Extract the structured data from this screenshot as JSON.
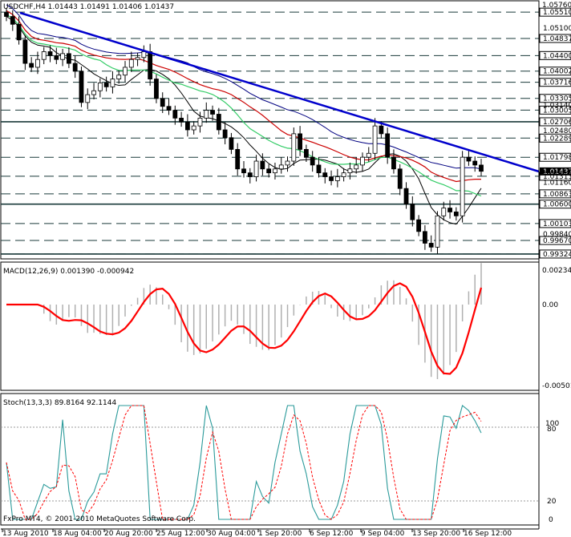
{
  "window": {
    "symbol_info": "USDCHF,H4  1.01443 1.01491 1.01406 1.01437",
    "copyright": "FxPro MT4, © 2001-2010 MetaQuotes Software Corp."
  },
  "colors": {
    "background": "#ffffff",
    "candles": "#000000",
    "trendline": "#0000cc",
    "ma_red": "#cc0000",
    "ma_green": "#33cc66",
    "ma_black": "#000000",
    "ma_navy": "#000080",
    "price_box": "#000000",
    "macd_hist": "#b0b0b0",
    "macd_signal": "#ff0000",
    "stoch_main": "#2a9a9a",
    "stoch_signal": "#ff0000"
  },
  "price_axis": {
    "top_label": "1.05760",
    "labels": [
      "1.05510",
      "1.05100",
      "1.04837",
      "1.04400",
      "1.04002",
      "1.03716",
      "1.03305",
      "1.03140",
      "1.03005",
      "1.02706",
      "1.02480",
      "1.02289",
      "1.01798",
      "1.01437",
      "1.01313",
      "1.01160",
      "1.00863",
      "1.00600",
      "1.00103",
      "0.99840",
      "0.99670",
      "0.99324"
    ],
    "boxed_labels": [
      "1.05510",
      "1.04837",
      "1.04400",
      "1.04002",
      "1.03716",
      "1.03305",
      "1.03005",
      "1.02706",
      "1.02289",
      "1.01798",
      "1.01313",
      "1.00863",
      "1.00600",
      "1.00103",
      "0.99670",
      "0.99324"
    ],
    "current_price": "1.01437",
    "ylim": [
      0.9922,
      1.0578
    ]
  },
  "macd": {
    "title": "MACD(12,26,9) 0.001390 -0.000942",
    "axis_labels": [
      "0.00234",
      "0.00",
      "-0.00501"
    ]
  },
  "stoch": {
    "title": "Stoch(13,3,3) 89.8164 92.1144",
    "axis_labels": [
      "100",
      "80",
      "20",
      "0"
    ]
  },
  "time_axis": {
    "labels": [
      "13 Aug 2010",
      "18 Aug 04:00",
      "20 Aug 20:00",
      "25 Aug 12:00",
      "30 Aug 04:00",
      "1 Sep 20:00",
      "6 Sep 12:00",
      "9 Sep 04:00",
      "13 Sep 20:00",
      "16 Sep 12:00"
    ]
  },
  "chart_data": {
    "type": "candlestick",
    "series": [
      {
        "name": "USDCHF,H4",
        "close": [
          1.054,
          1.052,
          1.048,
          1.042,
          1.041,
          1.043,
          1.045,
          1.044,
          1.043,
          1.0445,
          1.042,
          1.04,
          1.032,
          1.034,
          1.035,
          1.037,
          1.036,
          1.038,
          1.039,
          1.041,
          1.043,
          1.0435,
          1.045,
          1.038,
          1.033,
          1.031,
          1.03,
          1.028,
          1.027,
          1.025,
          1.026,
          1.028,
          1.03,
          1.029,
          1.025,
          1.023,
          1.02,
          1.015,
          1.014,
          1.013,
          1.017,
          1.015,
          1.014,
          1.015,
          1.016,
          1.017,
          1.024,
          1.02,
          1.018,
          1.016,
          1.014,
          1.013,
          1.012,
          1.013,
          1.014,
          1.015,
          1.016,
          1.018,
          1.019,
          1.026,
          1.024,
          1.018,
          1.015,
          1.01,
          1.006,
          1.002,
          0.999,
          0.996,
          0.995,
          1.003,
          1.005,
          1.004,
          1.003,
          1.018,
          1.017,
          1.016,
          1.0144
        ]
      }
    ]
  }
}
